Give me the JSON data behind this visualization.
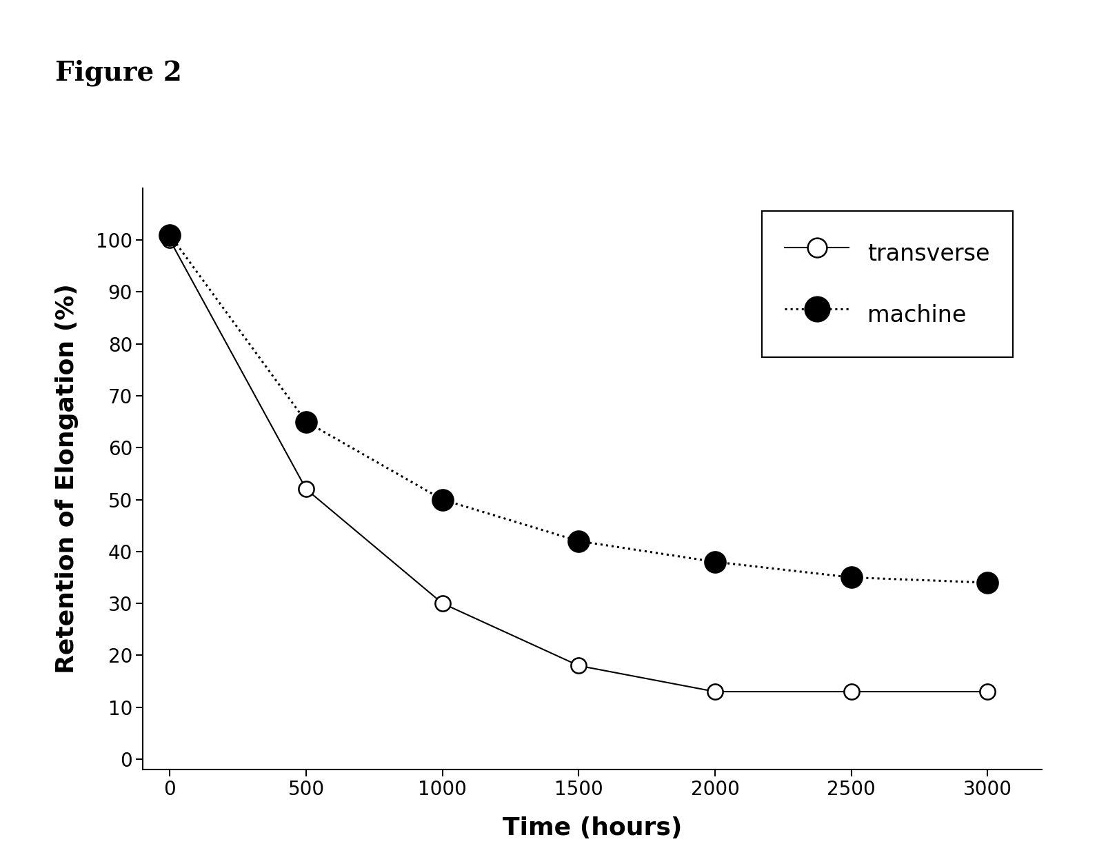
{
  "xlabel": "Time (hours)",
  "ylabel": "Retention of Elongation (%)",
  "transverse_x": [
    0,
    500,
    1000,
    1500,
    2000,
    2500,
    3000
  ],
  "transverse_y": [
    100,
    52,
    30,
    18,
    13,
    13,
    13
  ],
  "machine_x": [
    0,
    500,
    1000,
    1500,
    2000,
    2500,
    3000
  ],
  "machine_y": [
    101,
    65,
    50,
    42,
    38,
    35,
    34
  ],
  "xlim": [
    -100,
    3200
  ],
  "ylim": [
    -2,
    110
  ],
  "xticks": [
    0,
    500,
    1000,
    1500,
    2000,
    2500,
    3000
  ],
  "yticks": [
    0,
    10,
    20,
    30,
    40,
    50,
    60,
    70,
    80,
    90,
    100
  ],
  "legend_labels": [
    "transverse",
    "machine"
  ],
  "background_color": "#ffffff",
  "figure_label": "Figure 2"
}
